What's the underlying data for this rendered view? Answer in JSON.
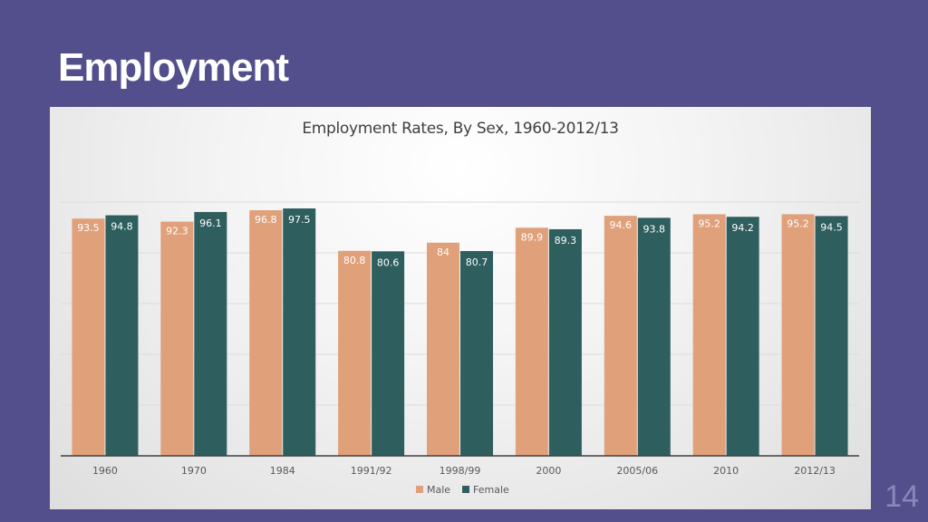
{
  "slide": {
    "title": "Employment",
    "page_number": "14"
  },
  "colors": {
    "background": "#534f8c",
    "male": "#e0a07a",
    "female": "#2e5e5e"
  },
  "chart_data": {
    "type": "bar",
    "title": "Employment Rates, By Sex, 1960-2012/13",
    "xlabel": "",
    "ylabel": "",
    "categories": [
      "1960",
      "1970",
      "1984",
      "1991/92",
      "1998/99",
      "2000",
      "2005/06",
      "2010",
      "2012/13"
    ],
    "series": [
      {
        "name": "Male",
        "color": "#e0a07a",
        "values": [
          93.5,
          92.3,
          96.8,
          80.8,
          84,
          89.9,
          94.6,
          95.2,
          95.2
        ]
      },
      {
        "name": "Female",
        "color": "#2e5e5e",
        "values": [
          94.8,
          96.1,
          97.5,
          80.6,
          80.7,
          89.3,
          93.8,
          94.2,
          94.5
        ]
      }
    ],
    "ylim": [
      0,
      100
    ],
    "grid": true,
    "legend_position": "bottom"
  }
}
